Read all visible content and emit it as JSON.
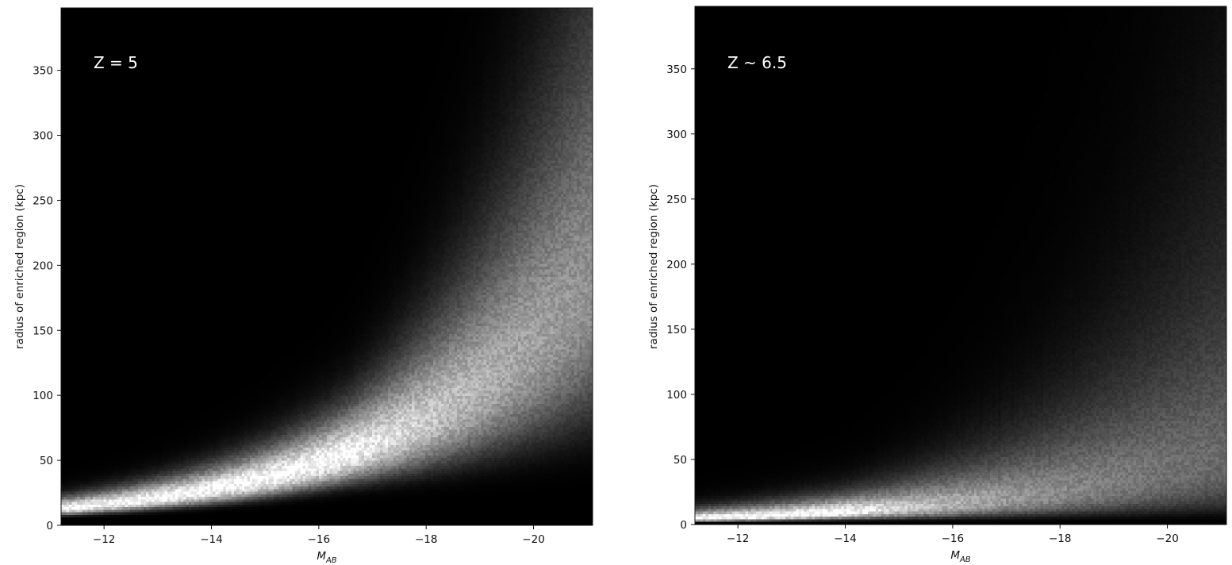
{
  "chart_data": [
    {
      "type": "heatmap",
      "id": "left",
      "annotation": "Z = 5",
      "xlabel_base": "M",
      "xlabel_sub": "AB",
      "ylabel": "radius of enriched region (kpc)",
      "xlim": [
        -11.2,
        -21.1
      ],
      "ylim": [
        0,
        398
      ],
      "xticks": [
        -12,
        -14,
        -16,
        -18,
        -20
      ],
      "xtick_labels": [
        "−12",
        "−14",
        "−16",
        "−18",
        "−20"
      ],
      "yticks": [
        0,
        50,
        100,
        150,
        200,
        250,
        300,
        350
      ],
      "ytick_labels": [
        "0",
        "50",
        "100",
        "150",
        "200",
        "250",
        "300",
        "350"
      ],
      "colormap": "gray",
      "ridge": {
        "r0": 13,
        "x0": -11.2,
        "growth_per_mag": 0.27,
        "width_frac": 0.32,
        "fan_start_mag": -16.5,
        "fan_strength": 0.55
      }
    },
    {
      "type": "heatmap",
      "id": "right",
      "annotation": "Z ~ 6.5",
      "xlabel_base": "M",
      "xlabel_sub": "AB",
      "ylabel": "radius of enriched region (kpc)",
      "xlim": [
        -11.2,
        -21.1
      ],
      "ylim": [
        0,
        398
      ],
      "xticks": [
        -12,
        -14,
        -16,
        -18,
        -20
      ],
      "xtick_labels": [
        "−12",
        "−14",
        "−16",
        "−18",
        "−20"
      ],
      "yticks": [
        0,
        50,
        100,
        150,
        200,
        250,
        300,
        350
      ],
      "ytick_labels": [
        "0",
        "50",
        "100",
        "150",
        "200",
        "250",
        "300",
        "350"
      ],
      "colormap": "gray",
      "ridge": {
        "r0": 5,
        "x0": -11.2,
        "growth_per_mag": 0.24,
        "width_frac": 0.55,
        "fan_start_mag": -14.0,
        "fan_strength": 0.7
      }
    }
  ]
}
